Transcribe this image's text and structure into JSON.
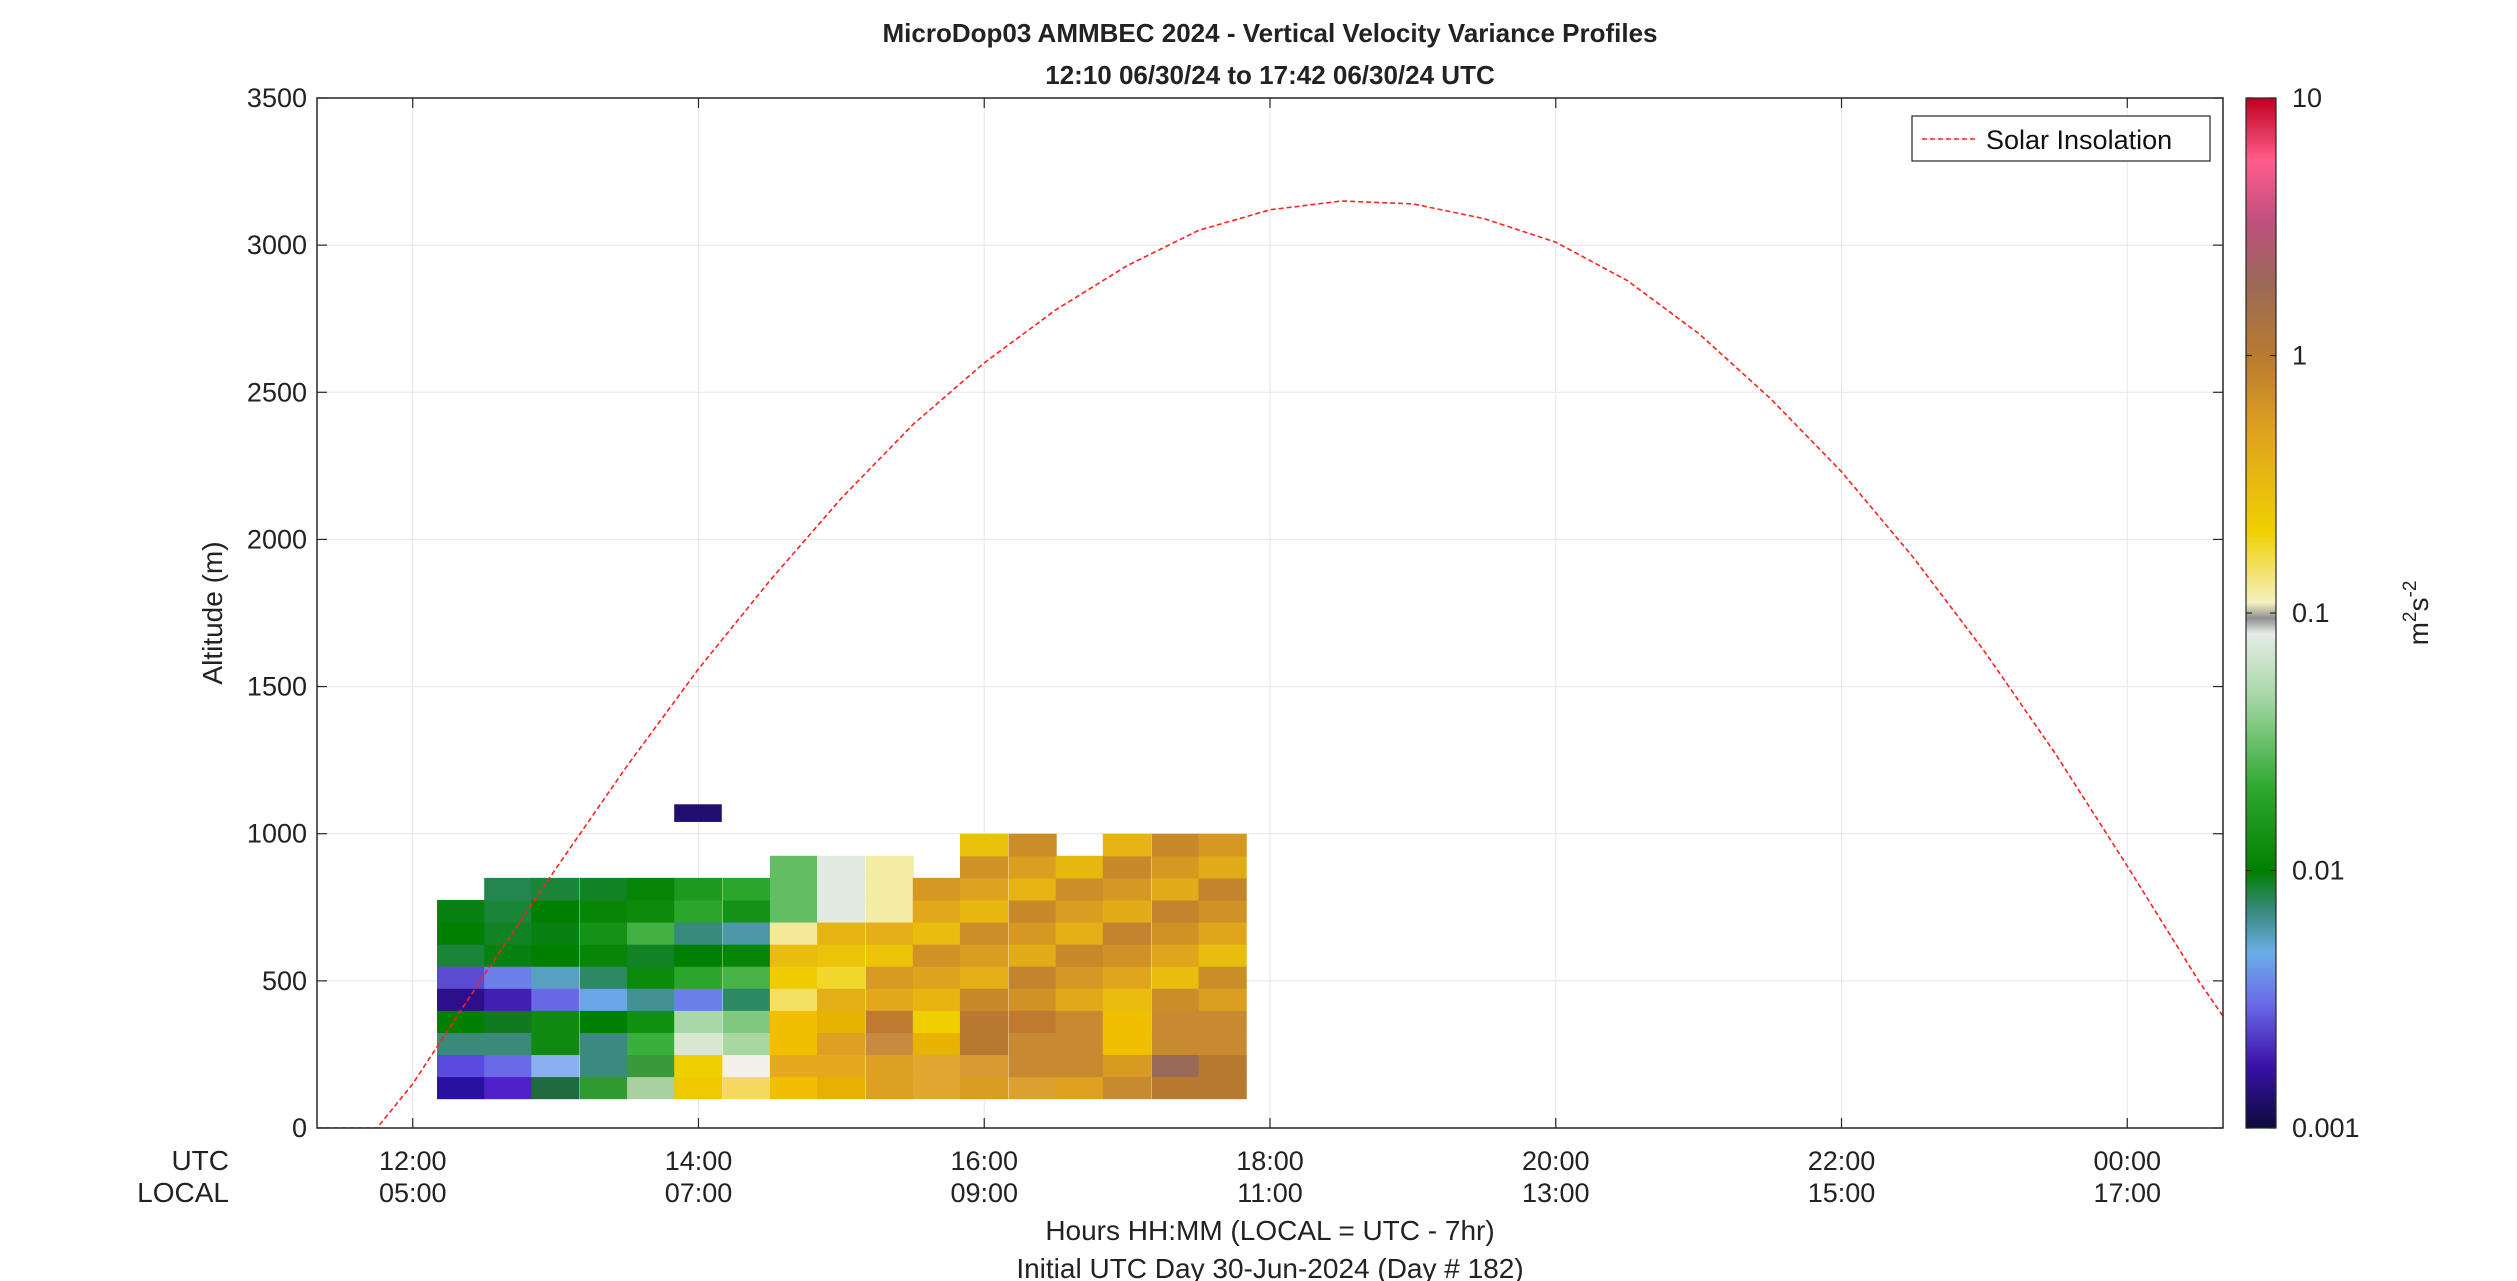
{
  "chart_data": {
    "type": "heatmap",
    "title": "MicroDop03 AMMBEC 2024 - Vertical Velocity Variance Profiles",
    "subtitle": "12:10 06/30/24 to 17:42 06/30/24  UTC",
    "ylabel": "Altitude (m)",
    "xlabel": "Hours HH:MM  (LOCAL = UTC - 7hr)",
    "xlabel2": "Initial UTC Day 30-Jun-2024 (Day # 182)",
    "row_labels": {
      "utc": "UTC",
      "local": "LOCAL"
    },
    "x_ticks_utc": [
      "12:00",
      "14:00",
      "16:00",
      "18:00",
      "20:00",
      "22:00",
      "00:00"
    ],
    "x_ticks_local": [
      "05:00",
      "07:00",
      "09:00",
      "11:00",
      "13:00",
      "15:00",
      "17:00"
    ],
    "x_tick_hours": [
      12,
      14,
      16,
      18,
      20,
      22,
      24
    ],
    "xlim_hours": [
      11.33,
      24.67
    ],
    "ylim": [
      0,
      3500
    ],
    "y_ticks": [
      "0",
      "500",
      "1000",
      "1500",
      "2000",
      "2500",
      "3000",
      "3500"
    ],
    "grid": true,
    "colorbar": {
      "label_base": "m",
      "label_exp1": "2",
      "label_mid": "s",
      "label_exp2": "-2",
      "scale": "log",
      "range": [
        0.001,
        10
      ],
      "ticks": [
        "0.001",
        "0.01",
        "0.1",
        "1",
        "10"
      ]
    },
    "legend": {
      "entry": "Solar Insolation",
      "position": "top-right",
      "color": "#ff2020"
    },
    "solar_insolation": {
      "hours": [
        11.33,
        11.75,
        12.0,
        12.5,
        13.0,
        13.5,
        14.0,
        14.5,
        15.0,
        15.5,
        16.0,
        16.5,
        17.0,
        17.5,
        18.0,
        18.5,
        19.0,
        19.5,
        20.0,
        20.5,
        21.0,
        21.5,
        22.0,
        22.5,
        23.0,
        23.5,
        24.0,
        24.5,
        24.67
      ],
      "values": [
        0,
        0,
        150,
        520,
        880,
        1230,
        1560,
        1860,
        2140,
        2390,
        2600,
        2780,
        2930,
        3050,
        3120,
        3150,
        3140,
        3090,
        3010,
        2880,
        2700,
        2480,
        2230,
        1940,
        1620,
        1270,
        890,
        500,
        380
      ]
    },
    "series_intervals": {
      "interval_hours": 0.333,
      "bin_height_m": 75,
      "columns": [
        {
          "start_hour": 12.17,
          "low_m": 100,
          "top_m": 775
        },
        {
          "start_hour": 12.5,
          "low_m": 100,
          "top_m": 850
        },
        {
          "start_hour": 12.83,
          "low_m": 100,
          "top_m": 850
        },
        {
          "start_hour": 13.17,
          "low_m": 100,
          "top_m": 850
        },
        {
          "start_hour": 13.5,
          "low_m": 100,
          "top_m": 850
        },
        {
          "start_hour": 13.83,
          "low_m": 100,
          "top_m": 850
        },
        {
          "start_hour": 14.17,
          "low_m": 100,
          "top_m": 850
        },
        {
          "start_hour": 14.5,
          "low_m": 100,
          "top_m": 900
        },
        {
          "start_hour": 14.83,
          "low_m": 100,
          "top_m": 900
        },
        {
          "start_hour": 15.17,
          "low_m": 100,
          "top_m": 900
        },
        {
          "start_hour": 15.5,
          "low_m": 100,
          "top_m": 850
        },
        {
          "start_hour": 15.83,
          "low_m": 100,
          "top_m": 975
        },
        {
          "start_hour": 16.17,
          "low_m": 100,
          "top_m": 975
        },
        {
          "start_hour": 16.5,
          "low_m": 100,
          "top_m": 900
        },
        {
          "start_hour": 16.83,
          "low_m": 100,
          "top_m": 1025
        },
        {
          "start_hour": 17.17,
          "low_m": 100,
          "top_m": 1025
        },
        {
          "start_hour": 17.5,
          "low_m": 100,
          "top_m": 1025
        }
      ],
      "isolated_cells": [
        {
          "start_hour": 13.83,
          "low_m": 1040,
          "top_m": 1100,
          "variance": 0.0013
        }
      ],
      "note_units": "variance in m2 s-2, log scale"
    }
  },
  "colors": {
    "heatmap_fill": "#ffffff",
    "insolation_line": "#ff2020",
    "grid": "#e6e6e6"
  }
}
